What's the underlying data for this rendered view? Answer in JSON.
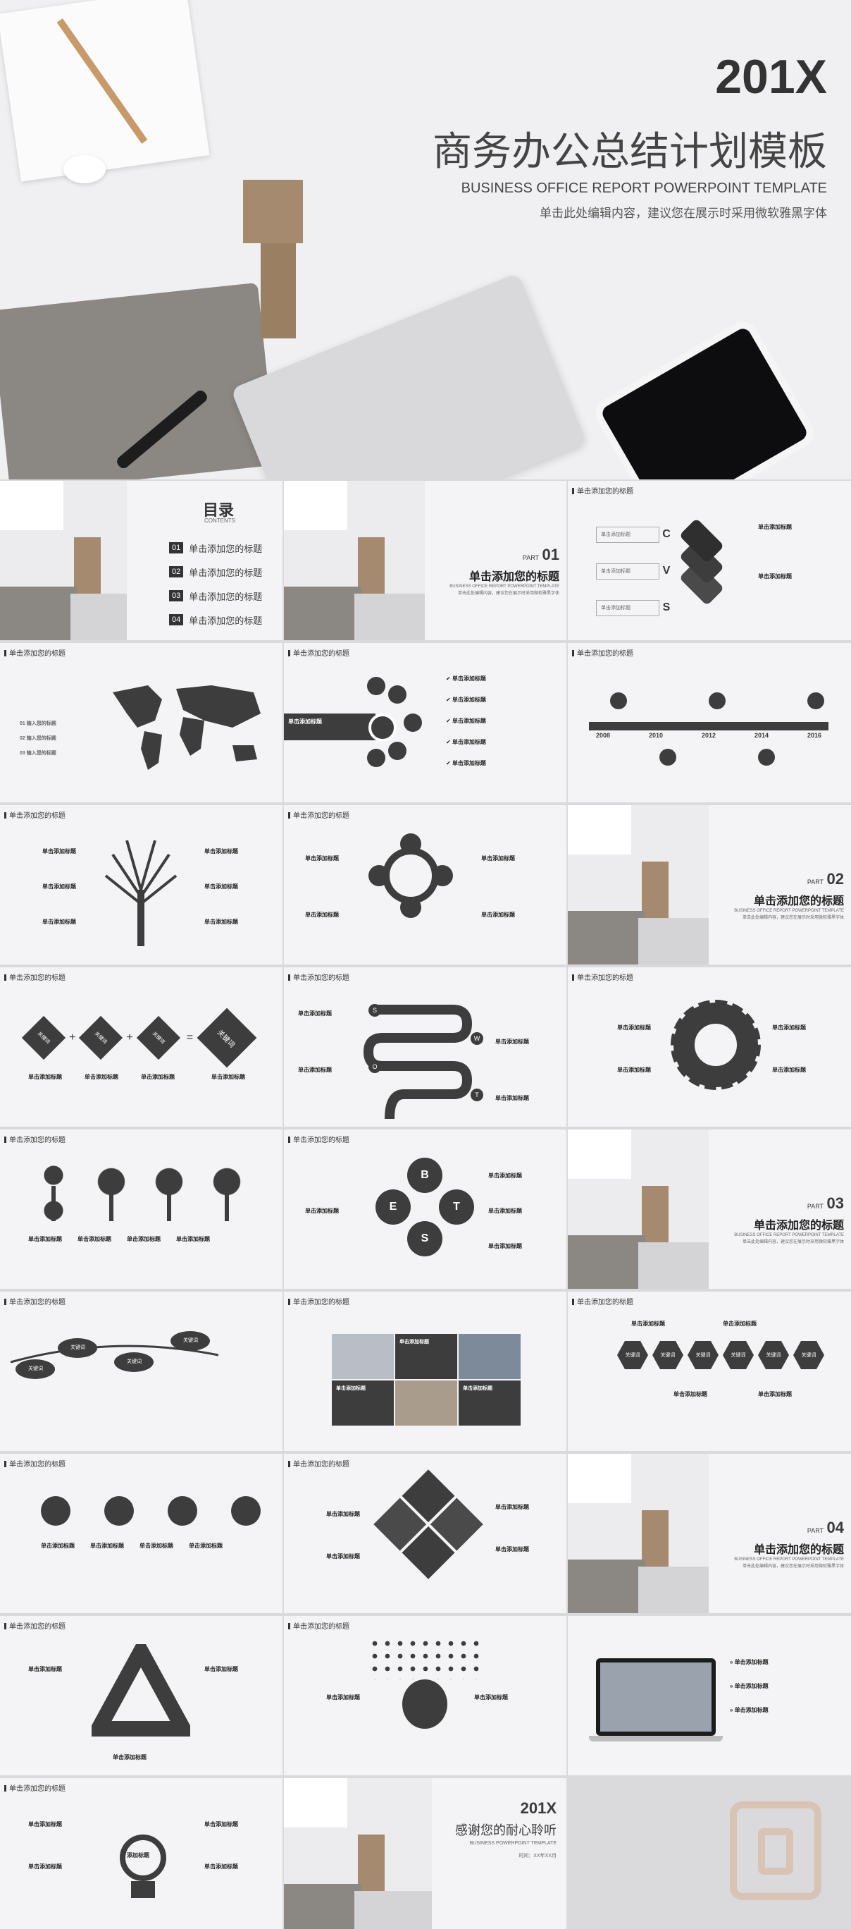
{
  "cover": {
    "year": "201X",
    "title": "商务办公总结计划模板",
    "subtitle_en": "BUSINESS OFFICE REPORT POWERPOINT TEMPLATE",
    "hint": "单击此处编辑内容，建议您在展示时采用微软雅黑字体"
  },
  "common": {
    "slide_title": "单击添加您的标题",
    "sub_title": "单击添加标题",
    "sub_en": "BUSINESS OFFICE REPORT POWERPOINT TEMPLATE",
    "sub_hint": "单击此处编辑内容，建议您在展示时采用微软雅黑字体"
  },
  "toc": {
    "title": "目录",
    "title_en": "CONTENTS",
    "items": [
      {
        "num": "01",
        "label": "单击添加您的标题"
      },
      {
        "num": "02",
        "label": "单击添加您的标题"
      },
      {
        "num": "03",
        "label": "单击添加您的标题"
      },
      {
        "num": "04",
        "label": "单击添加您的标题"
      }
    ]
  },
  "parts": [
    {
      "part": "PART",
      "num": "01",
      "title": "单击添加您的标题"
    },
    {
      "part": "PART",
      "num": "02",
      "title": "单击添加您的标题"
    },
    {
      "part": "PART",
      "num": "03",
      "title": "单击添加您的标题"
    },
    {
      "part": "PART",
      "num": "04",
      "title": "单击添加您的标题"
    }
  ],
  "cvs": [
    "C",
    "V",
    "S"
  ],
  "timeline_years": [
    "2008",
    "2010",
    "2012",
    "2014",
    "2016"
  ],
  "map_items": [
    {
      "num": "01",
      "label": "输入您的标题"
    },
    {
      "num": "02",
      "label": "输入您的标题"
    },
    {
      "num": "03",
      "label": "输入您的标题"
    }
  ],
  "keywords": {
    "kw": "关键词",
    "plus": "+",
    "eq": "="
  },
  "swot": [
    "S",
    "W",
    "O",
    "T"
  ],
  "best": [
    "B",
    "E",
    "S",
    "T"
  ],
  "hex_labels": [
    "关键词",
    "关键词",
    "关键词",
    "关键词",
    "关键词",
    "关键词"
  ],
  "leaf_labels": [
    "关键词",
    "关键词",
    "关键词",
    "关键词"
  ],
  "bulb_label": "添加标题",
  "ending": {
    "year": "201X",
    "title": "感谢您的耐心聆听",
    "en": "BUSINESS POWERPOINT TEMPLATE",
    "date": "时间：XX年XX月"
  },
  "colors": {
    "dark": "#3d3d3d",
    "bg": "#f4f4f6",
    "accent": "#7a7a7a"
  }
}
